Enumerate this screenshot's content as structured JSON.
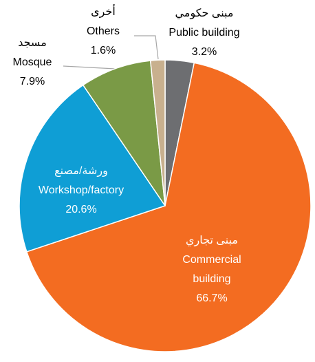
{
  "chart_data": {
    "type": "pie",
    "categories": [
      "Public building",
      "Commercial building",
      "Workshop/factory",
      "Mosque",
      "Others"
    ],
    "arabic_labels": [
      "مبنى حكومي",
      "مبنى تجاري",
      "ورشة/مصنع",
      "مسجد",
      "أخرى"
    ],
    "values": [
      3.2,
      66.7,
      20.6,
      7.9,
      1.6
    ],
    "value_labels": [
      "3.2%",
      "66.7%",
      "20.6%",
      "7.9%",
      "1.6%"
    ],
    "colors": [
      "#6d6e71",
      "#f36c21",
      "#0f9ed5",
      "#7a9a46",
      "#c8b08e"
    ]
  }
}
